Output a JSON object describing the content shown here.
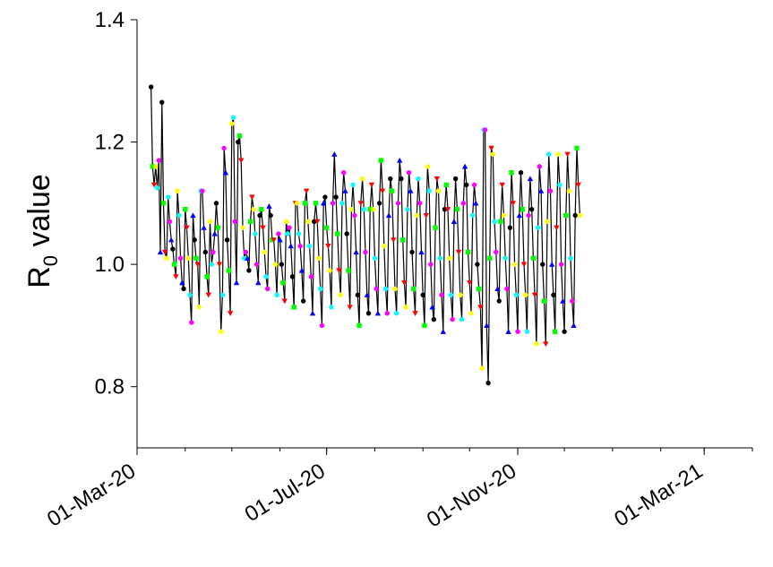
{
  "chart_data": {
    "type": "scatter",
    "title": "",
    "xlabel": "",
    "ylabel": "R",
    "ylabel_subscript": "0",
    "ylabel_suffix": " value",
    "ylim": [
      0.7,
      1.4
    ],
    "xlim": [
      "2020-03-01",
      "2021-04-01"
    ],
    "y_ticks": [
      0.8,
      1.0,
      1.2,
      1.4
    ],
    "y_tick_labels": [
      "0.8",
      "1.0",
      "1.2",
      "1.4"
    ],
    "x_ticks": [
      "2020-03-01",
      "2020-07-01",
      "2020-11-01",
      "2021-03-01"
    ],
    "x_tick_labels": [
      "01-Mar-20",
      "01-Jul-20",
      "01-Nov-20",
      "01-Mar-21"
    ],
    "grid": false,
    "legend": "none",
    "start_date": "2020-03-10",
    "line_color": "#000000",
    "weekday_colors": [
      "#000000",
      "#00ff00",
      "#ff0000",
      "#ffff00",
      "#00ffff",
      "#ff00ff",
      "#0000ff"
    ],
    "weekday_markers": [
      "circle",
      "square",
      "triangle-down",
      "circle",
      "circle",
      "circle",
      "triangle-up"
    ],
    "values": [
      1.29,
      1.16,
      1.13,
      1.16,
      1.125,
      1.17,
      1.02,
      1.265,
      1.1,
      1.02,
      1.01,
      1.11,
      1.07,
      1.04,
      1.025,
      1.0,
      0.98,
      1.12,
      1.08,
      1.01,
      0.97,
      0.96,
      1.09,
      1.06,
      1.01,
      0.95,
      0.905,
      1.08,
      1.04,
      1.01,
      1.0,
      0.93,
      1.12,
      1.12,
      1.06,
      1.02,
      0.98,
      0.95,
      1.07,
      1.0,
      1.02,
      1.05,
      1.1,
      1.06,
      1.0,
      0.89,
      0.95,
      1.19,
      1.15,
      1.04,
      0.99,
      0.92,
      1.23,
      1.24,
      1.07,
      0.97,
      1.2,
      1.21,
      1.17,
      1.06,
      1.01,
      1.02,
      1.01,
      0.99,
      1.07,
      1.11,
      1.09,
      1.05,
      1.0,
      0.97,
      1.08,
      1.09,
      1.06,
      1.02,
      0.98,
      0.96,
      1.095,
      1.08,
      1.04,
      1.04,
      1.0,
      0.95,
      1.05,
      1.04,
      1.0,
      0.97,
      0.94,
      1.07,
      1.05,
      1.06,
      1.03,
      0.98,
      0.93,
      1.1,
      1.1,
      1.05,
      1.03,
      0.99,
      0.94,
      1.1,
      1.12,
      1.07,
      1.03,
      0.98,
      0.92,
      1.07,
      1.1,
      1.07,
      1.01,
      0.96,
      0.9,
      1.1,
      1.11,
      1.06,
      1.03,
      0.99,
      0.93,
      1.1,
      1.18,
      1.11,
      1.05,
      0.99,
      0.95,
      1.1,
      1.15,
      1.12,
      1.05,
      0.99,
      0.93,
      1.09,
      1.13,
      1.08,
      1.02,
      0.95,
      0.9,
      1.1,
      1.14,
      1.09,
      1.02,
      0.95,
      0.92,
      1.09,
      1.13,
      1.09,
      1.01,
      0.96,
      0.92,
      1.1,
      1.17,
      1.12,
      1.03,
      0.96,
      0.92,
      1.08,
      1.14,
      1.12,
      1.04,
      0.96,
      0.92,
      1.1,
      1.17,
      1.14,
      1.04,
      0.97,
      0.93,
      1.09,
      1.15,
      1.12,
      1.02,
      0.96,
      0.92,
      1.08,
      1.14,
      1.1,
      1.02,
      0.95,
      0.9,
      1.08,
      1.16,
      1.12,
      1.0,
      0.93,
      0.91,
      1.06,
      1.14,
      1.12,
      1.01,
      0.95,
      0.89,
      1.09,
      1.13,
      1.09,
      1.01,
      0.95,
      0.91,
      1.07,
      1.14,
      1.09,
      1.02,
      0.95,
      0.91,
      1.1,
      1.16,
      1.13,
      1.02,
      0.97,
      0.92,
      1.08,
      1.13,
      1.1,
      1.0,
      0.96,
      0.93,
      0.83,
      1.22,
      1.22,
      0.9,
      0.806,
      1.01,
      1.19,
      1.18,
      1.07,
      1.02,
      0.96,
      0.94,
      1.07,
      1.13,
      1.08,
      1.01,
      0.96,
      0.89,
      1.06,
      1.15,
      1.1,
      1.0,
      0.95,
      0.89,
      1.08,
      1.15,
      1.09,
      1.0,
      0.95,
      0.89,
      1.08,
      1.14,
      1.09,
      1.01,
      0.95,
      0.87,
      1.06,
      1.16,
      1.12,
      1.0,
      0.94,
      0.87,
      1.07,
      1.18,
      1.12,
      1.0,
      0.95,
      0.89,
      1.06,
      1.18,
      1.13,
      1.0,
      0.94,
      0.89,
      1.08,
      1.18,
      1.12,
      1.01,
      0.94,
      0.9,
      1.08,
      1.19,
      1.13,
      1.08
    ]
  }
}
